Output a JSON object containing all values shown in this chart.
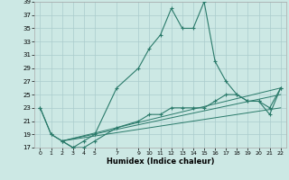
{
  "xlabel": "Humidex (Indice chaleur)",
  "background_color": "#cce8e4",
  "grid_color": "#b8d8d4",
  "line_color": "#2a7a6a",
  "ylim": [
    17,
    39
  ],
  "xlim": [
    -0.5,
    22.5
  ],
  "yticks": [
    17,
    19,
    21,
    23,
    25,
    27,
    29,
    31,
    33,
    35,
    37,
    39
  ],
  "xticks": [
    0,
    1,
    2,
    3,
    4,
    5,
    7,
    9,
    10,
    11,
    12,
    13,
    14,
    15,
    16,
    17,
    18,
    19,
    20,
    21,
    22
  ],
  "series": [
    {
      "x": [
        0,
        1,
        2,
        3,
        4,
        5,
        7,
        9,
        10,
        11,
        12,
        13,
        14,
        15,
        16,
        17,
        18,
        19,
        20,
        21,
        22
      ],
      "y": [
        23,
        19,
        18,
        17,
        18,
        19,
        26,
        29,
        32,
        34,
        38,
        35,
        35,
        39,
        30,
        27,
        25,
        24,
        24,
        23,
        26
      ]
    },
    {
      "x": [
        0,
        1,
        2,
        3,
        4,
        5,
        7,
        9,
        10,
        11,
        12,
        13,
        14,
        15,
        16,
        17,
        18,
        19,
        20,
        21,
        22
      ],
      "y": [
        23,
        19,
        18,
        17,
        17,
        18,
        20,
        21,
        22,
        22,
        23,
        23,
        23,
        23,
        24,
        25,
        25,
        24,
        24,
        22,
        26
      ]
    },
    {
      "x": [
        2,
        22
      ],
      "y": [
        18,
        26
      ]
    },
    {
      "x": [
        2,
        22
      ],
      "y": [
        18,
        25
      ]
    },
    {
      "x": [
        2,
        22
      ],
      "y": [
        18,
        23
      ]
    }
  ]
}
